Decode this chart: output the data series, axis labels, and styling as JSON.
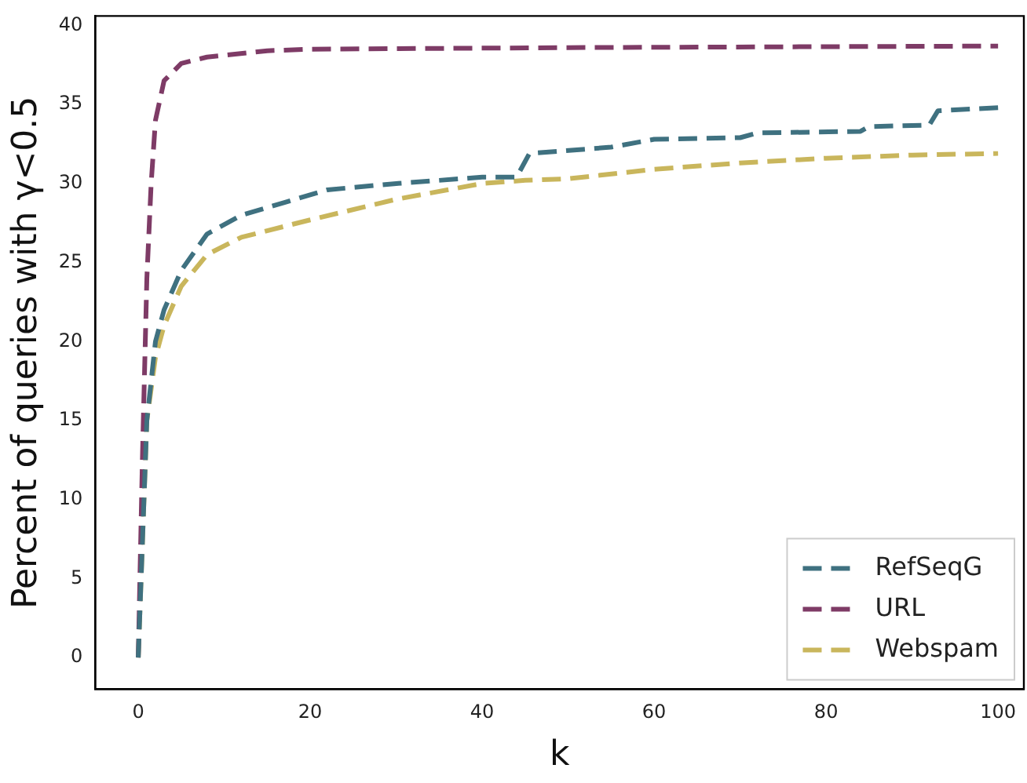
{
  "chart_data": {
    "type": "line",
    "xlabel": "k",
    "ylabel": "Percent of queries with γ<0.5",
    "xlim": [
      -5,
      103
    ],
    "ylim": [
      -2,
      40.6
    ],
    "xticks": [
      0,
      20,
      40,
      60,
      80,
      100
    ],
    "yticks": [
      0,
      5,
      10,
      15,
      20,
      25,
      30,
      35,
      40
    ],
    "grid": false,
    "legend": "bottom right",
    "line_style": "dashed",
    "marker": "none",
    "series": [
      {
        "name": "RefSeqG",
        "color": "#3f7180",
        "x": [
          0,
          1,
          2,
          3,
          5,
          8,
          12,
          17,
          22,
          30,
          40,
          44,
          45.5,
          55,
          60,
          70,
          72,
          84,
          85,
          92,
          93,
          100
        ],
        "values": [
          0,
          15,
          20,
          22,
          24.5,
          26.8,
          28,
          28.8,
          29.6,
          30,
          30.4,
          30.4,
          31.9,
          32.3,
          32.8,
          32.9,
          33.2,
          33.3,
          33.6,
          33.7,
          34.6,
          34.8
        ]
      },
      {
        "name": "URL",
        "color": "#7e3b66",
        "x": [
          0,
          0.5,
          1,
          1.5,
          2,
          3,
          5,
          8,
          15,
          20,
          50,
          100
        ],
        "values": [
          0,
          13,
          24,
          30,
          34,
          36.5,
          37.6,
          38,
          38.4,
          38.5,
          38.6,
          38.7
        ]
      },
      {
        "name": "Webspam",
        "color": "#c9b65c",
        "x": [
          0,
          1,
          2,
          3,
          5,
          8,
          12,
          20,
          30,
          40,
          45,
          50,
          60,
          70,
          80,
          90,
          100
        ],
        "values": [
          0,
          15,
          19,
          21,
          23.5,
          25.5,
          26.6,
          27.7,
          29,
          30,
          30.2,
          30.3,
          30.9,
          31.3,
          31.6,
          31.8,
          31.9
        ]
      }
    ]
  }
}
